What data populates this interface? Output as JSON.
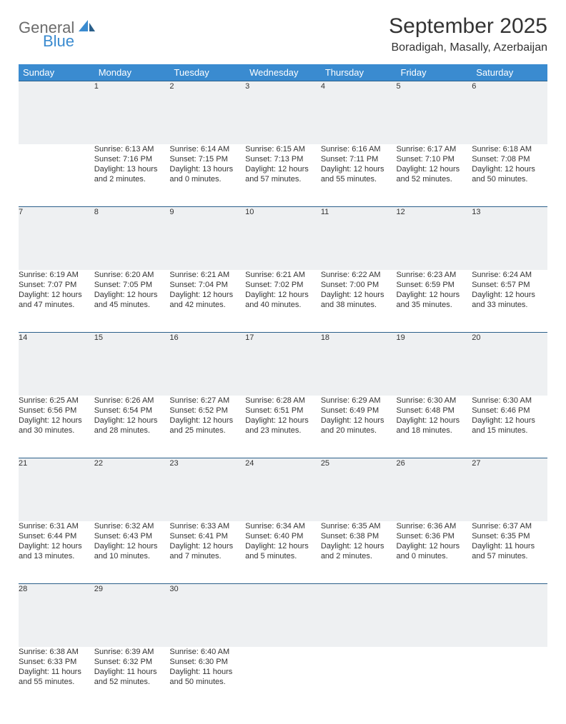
{
  "logo": {
    "word1": "General",
    "word2": "Blue"
  },
  "title": "September 2025",
  "subtitle": "Boradigah, Masally, Azerbaijan",
  "colors": {
    "header_bg": "#3a8bd0",
    "header_text": "#ffffff",
    "daynum_bg": "#eef0f2",
    "row_border": "#2a5f8a",
    "page_bg": "#ffffff",
    "text": "#333333",
    "logo_gray": "#6b6b6b",
    "logo_blue": "#3a8bd0"
  },
  "day_headers": [
    "Sunday",
    "Monday",
    "Tuesday",
    "Wednesday",
    "Thursday",
    "Friday",
    "Saturday"
  ],
  "weeks": [
    [
      null,
      {
        "n": "1",
        "sr": "Sunrise: 6:13 AM",
        "ss": "Sunset: 7:16 PM",
        "d1": "Daylight: 13 hours",
        "d2": "and 2 minutes."
      },
      {
        "n": "2",
        "sr": "Sunrise: 6:14 AM",
        "ss": "Sunset: 7:15 PM",
        "d1": "Daylight: 13 hours",
        "d2": "and 0 minutes."
      },
      {
        "n": "3",
        "sr": "Sunrise: 6:15 AM",
        "ss": "Sunset: 7:13 PM",
        "d1": "Daylight: 12 hours",
        "d2": "and 57 minutes."
      },
      {
        "n": "4",
        "sr": "Sunrise: 6:16 AM",
        "ss": "Sunset: 7:11 PM",
        "d1": "Daylight: 12 hours",
        "d2": "and 55 minutes."
      },
      {
        "n": "5",
        "sr": "Sunrise: 6:17 AM",
        "ss": "Sunset: 7:10 PM",
        "d1": "Daylight: 12 hours",
        "d2": "and 52 minutes."
      },
      {
        "n": "6",
        "sr": "Sunrise: 6:18 AM",
        "ss": "Sunset: 7:08 PM",
        "d1": "Daylight: 12 hours",
        "d2": "and 50 minutes."
      }
    ],
    [
      {
        "n": "7",
        "sr": "Sunrise: 6:19 AM",
        "ss": "Sunset: 7:07 PM",
        "d1": "Daylight: 12 hours",
        "d2": "and 47 minutes."
      },
      {
        "n": "8",
        "sr": "Sunrise: 6:20 AM",
        "ss": "Sunset: 7:05 PM",
        "d1": "Daylight: 12 hours",
        "d2": "and 45 minutes."
      },
      {
        "n": "9",
        "sr": "Sunrise: 6:21 AM",
        "ss": "Sunset: 7:04 PM",
        "d1": "Daylight: 12 hours",
        "d2": "and 42 minutes."
      },
      {
        "n": "10",
        "sr": "Sunrise: 6:21 AM",
        "ss": "Sunset: 7:02 PM",
        "d1": "Daylight: 12 hours",
        "d2": "and 40 minutes."
      },
      {
        "n": "11",
        "sr": "Sunrise: 6:22 AM",
        "ss": "Sunset: 7:00 PM",
        "d1": "Daylight: 12 hours",
        "d2": "and 38 minutes."
      },
      {
        "n": "12",
        "sr": "Sunrise: 6:23 AM",
        "ss": "Sunset: 6:59 PM",
        "d1": "Daylight: 12 hours",
        "d2": "and 35 minutes."
      },
      {
        "n": "13",
        "sr": "Sunrise: 6:24 AM",
        "ss": "Sunset: 6:57 PM",
        "d1": "Daylight: 12 hours",
        "d2": "and 33 minutes."
      }
    ],
    [
      {
        "n": "14",
        "sr": "Sunrise: 6:25 AM",
        "ss": "Sunset: 6:56 PM",
        "d1": "Daylight: 12 hours",
        "d2": "and 30 minutes."
      },
      {
        "n": "15",
        "sr": "Sunrise: 6:26 AM",
        "ss": "Sunset: 6:54 PM",
        "d1": "Daylight: 12 hours",
        "d2": "and 28 minutes."
      },
      {
        "n": "16",
        "sr": "Sunrise: 6:27 AM",
        "ss": "Sunset: 6:52 PM",
        "d1": "Daylight: 12 hours",
        "d2": "and 25 minutes."
      },
      {
        "n": "17",
        "sr": "Sunrise: 6:28 AM",
        "ss": "Sunset: 6:51 PM",
        "d1": "Daylight: 12 hours",
        "d2": "and 23 minutes."
      },
      {
        "n": "18",
        "sr": "Sunrise: 6:29 AM",
        "ss": "Sunset: 6:49 PM",
        "d1": "Daylight: 12 hours",
        "d2": "and 20 minutes."
      },
      {
        "n": "19",
        "sr": "Sunrise: 6:30 AM",
        "ss": "Sunset: 6:48 PM",
        "d1": "Daylight: 12 hours",
        "d2": "and 18 minutes."
      },
      {
        "n": "20",
        "sr": "Sunrise: 6:30 AM",
        "ss": "Sunset: 6:46 PM",
        "d1": "Daylight: 12 hours",
        "d2": "and 15 minutes."
      }
    ],
    [
      {
        "n": "21",
        "sr": "Sunrise: 6:31 AM",
        "ss": "Sunset: 6:44 PM",
        "d1": "Daylight: 12 hours",
        "d2": "and 13 minutes."
      },
      {
        "n": "22",
        "sr": "Sunrise: 6:32 AM",
        "ss": "Sunset: 6:43 PM",
        "d1": "Daylight: 12 hours",
        "d2": "and 10 minutes."
      },
      {
        "n": "23",
        "sr": "Sunrise: 6:33 AM",
        "ss": "Sunset: 6:41 PM",
        "d1": "Daylight: 12 hours",
        "d2": "and 7 minutes."
      },
      {
        "n": "24",
        "sr": "Sunrise: 6:34 AM",
        "ss": "Sunset: 6:40 PM",
        "d1": "Daylight: 12 hours",
        "d2": "and 5 minutes."
      },
      {
        "n": "25",
        "sr": "Sunrise: 6:35 AM",
        "ss": "Sunset: 6:38 PM",
        "d1": "Daylight: 12 hours",
        "d2": "and 2 minutes."
      },
      {
        "n": "26",
        "sr": "Sunrise: 6:36 AM",
        "ss": "Sunset: 6:36 PM",
        "d1": "Daylight: 12 hours",
        "d2": "and 0 minutes."
      },
      {
        "n": "27",
        "sr": "Sunrise: 6:37 AM",
        "ss": "Sunset: 6:35 PM",
        "d1": "Daylight: 11 hours",
        "d2": "and 57 minutes."
      }
    ],
    [
      {
        "n": "28",
        "sr": "Sunrise: 6:38 AM",
        "ss": "Sunset: 6:33 PM",
        "d1": "Daylight: 11 hours",
        "d2": "and 55 minutes."
      },
      {
        "n": "29",
        "sr": "Sunrise: 6:39 AM",
        "ss": "Sunset: 6:32 PM",
        "d1": "Daylight: 11 hours",
        "d2": "and 52 minutes."
      },
      {
        "n": "30",
        "sr": "Sunrise: 6:40 AM",
        "ss": "Sunset: 6:30 PM",
        "d1": "Daylight: 11 hours",
        "d2": "and 50 minutes."
      },
      null,
      null,
      null,
      null
    ]
  ]
}
